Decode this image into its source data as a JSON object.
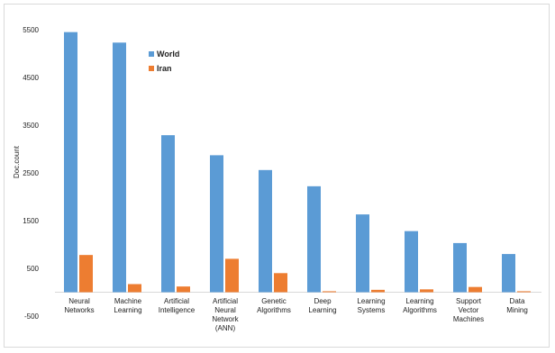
{
  "chart_data": {
    "type": "bar",
    "ylabel": "Doc.count",
    "xlabel": "",
    "title": "",
    "ylim": [
      -500,
      5500
    ],
    "yticks": [
      -500,
      500,
      1500,
      2500,
      3500,
      4500,
      5500
    ],
    "yticks_labels": [
      "-500",
      "500",
      "1500",
      "2500",
      "3500",
      "4500",
      "5500"
    ],
    "categories": [
      [
        "Neural",
        "Networks"
      ],
      [
        "Machine",
        "Learning"
      ],
      [
        "Artificial",
        "Intelligence"
      ],
      [
        "Artificial",
        "Neural",
        "Network",
        "(ANN)"
      ],
      [
        "Genetic",
        "Algorithms"
      ],
      [
        "Deep",
        "Learning"
      ],
      [
        "Learning",
        "Systems"
      ],
      [
        "Learning",
        "Algorithms"
      ],
      [
        "Support",
        "Vector",
        "Machines"
      ],
      [
        "Data",
        "Mining"
      ]
    ],
    "series": [
      {
        "name": "World",
        "color": "#5b9bd5",
        "values": [
          5450,
          5230,
          3290,
          2870,
          2560,
          2220,
          1630,
          1280,
          1030,
          800
        ]
      },
      {
        "name": "Iran",
        "color": "#ed7d31",
        "values": [
          780,
          170,
          120,
          700,
          400,
          20,
          50,
          60,
          110,
          20
        ]
      }
    ],
    "grid": false,
    "legend_position": "upper-middle"
  }
}
